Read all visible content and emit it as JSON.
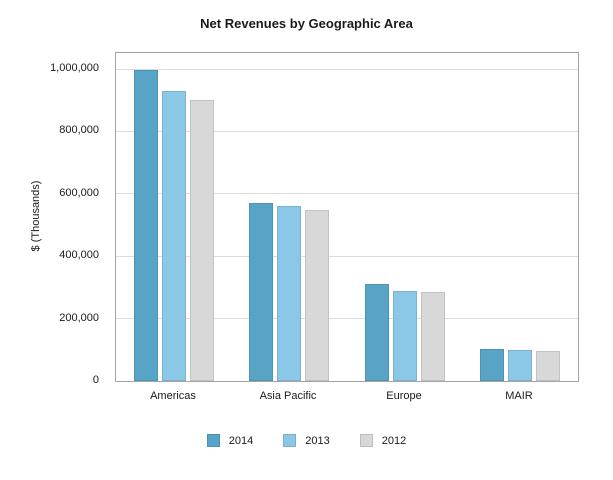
{
  "chart_data": {
    "type": "bar",
    "title": "Net Revenues by Geographic Area",
    "ylabel": "$ (Thousands)",
    "xlabel": "",
    "categories": [
      "Americas",
      "Asia Pacific",
      "Europe",
      "MAIR"
    ],
    "series": [
      {
        "name": "2014",
        "color": "#58A4C6",
        "values": [
          998000,
          570000,
          312000,
          101000
        ]
      },
      {
        "name": "2013",
        "color": "#8BC7E6",
        "values": [
          931000,
          560000,
          289000,
          99000
        ]
      },
      {
        "name": "2012",
        "color": "#D8D8D8",
        "values": [
          900000,
          549000,
          284000,
          97000
        ]
      }
    ],
    "ylim": [
      0,
      1000000
    ],
    "yticks": [
      0,
      200000,
      400000,
      600000,
      800000,
      1000000
    ],
    "grid": true,
    "legend_position": "bottom"
  }
}
